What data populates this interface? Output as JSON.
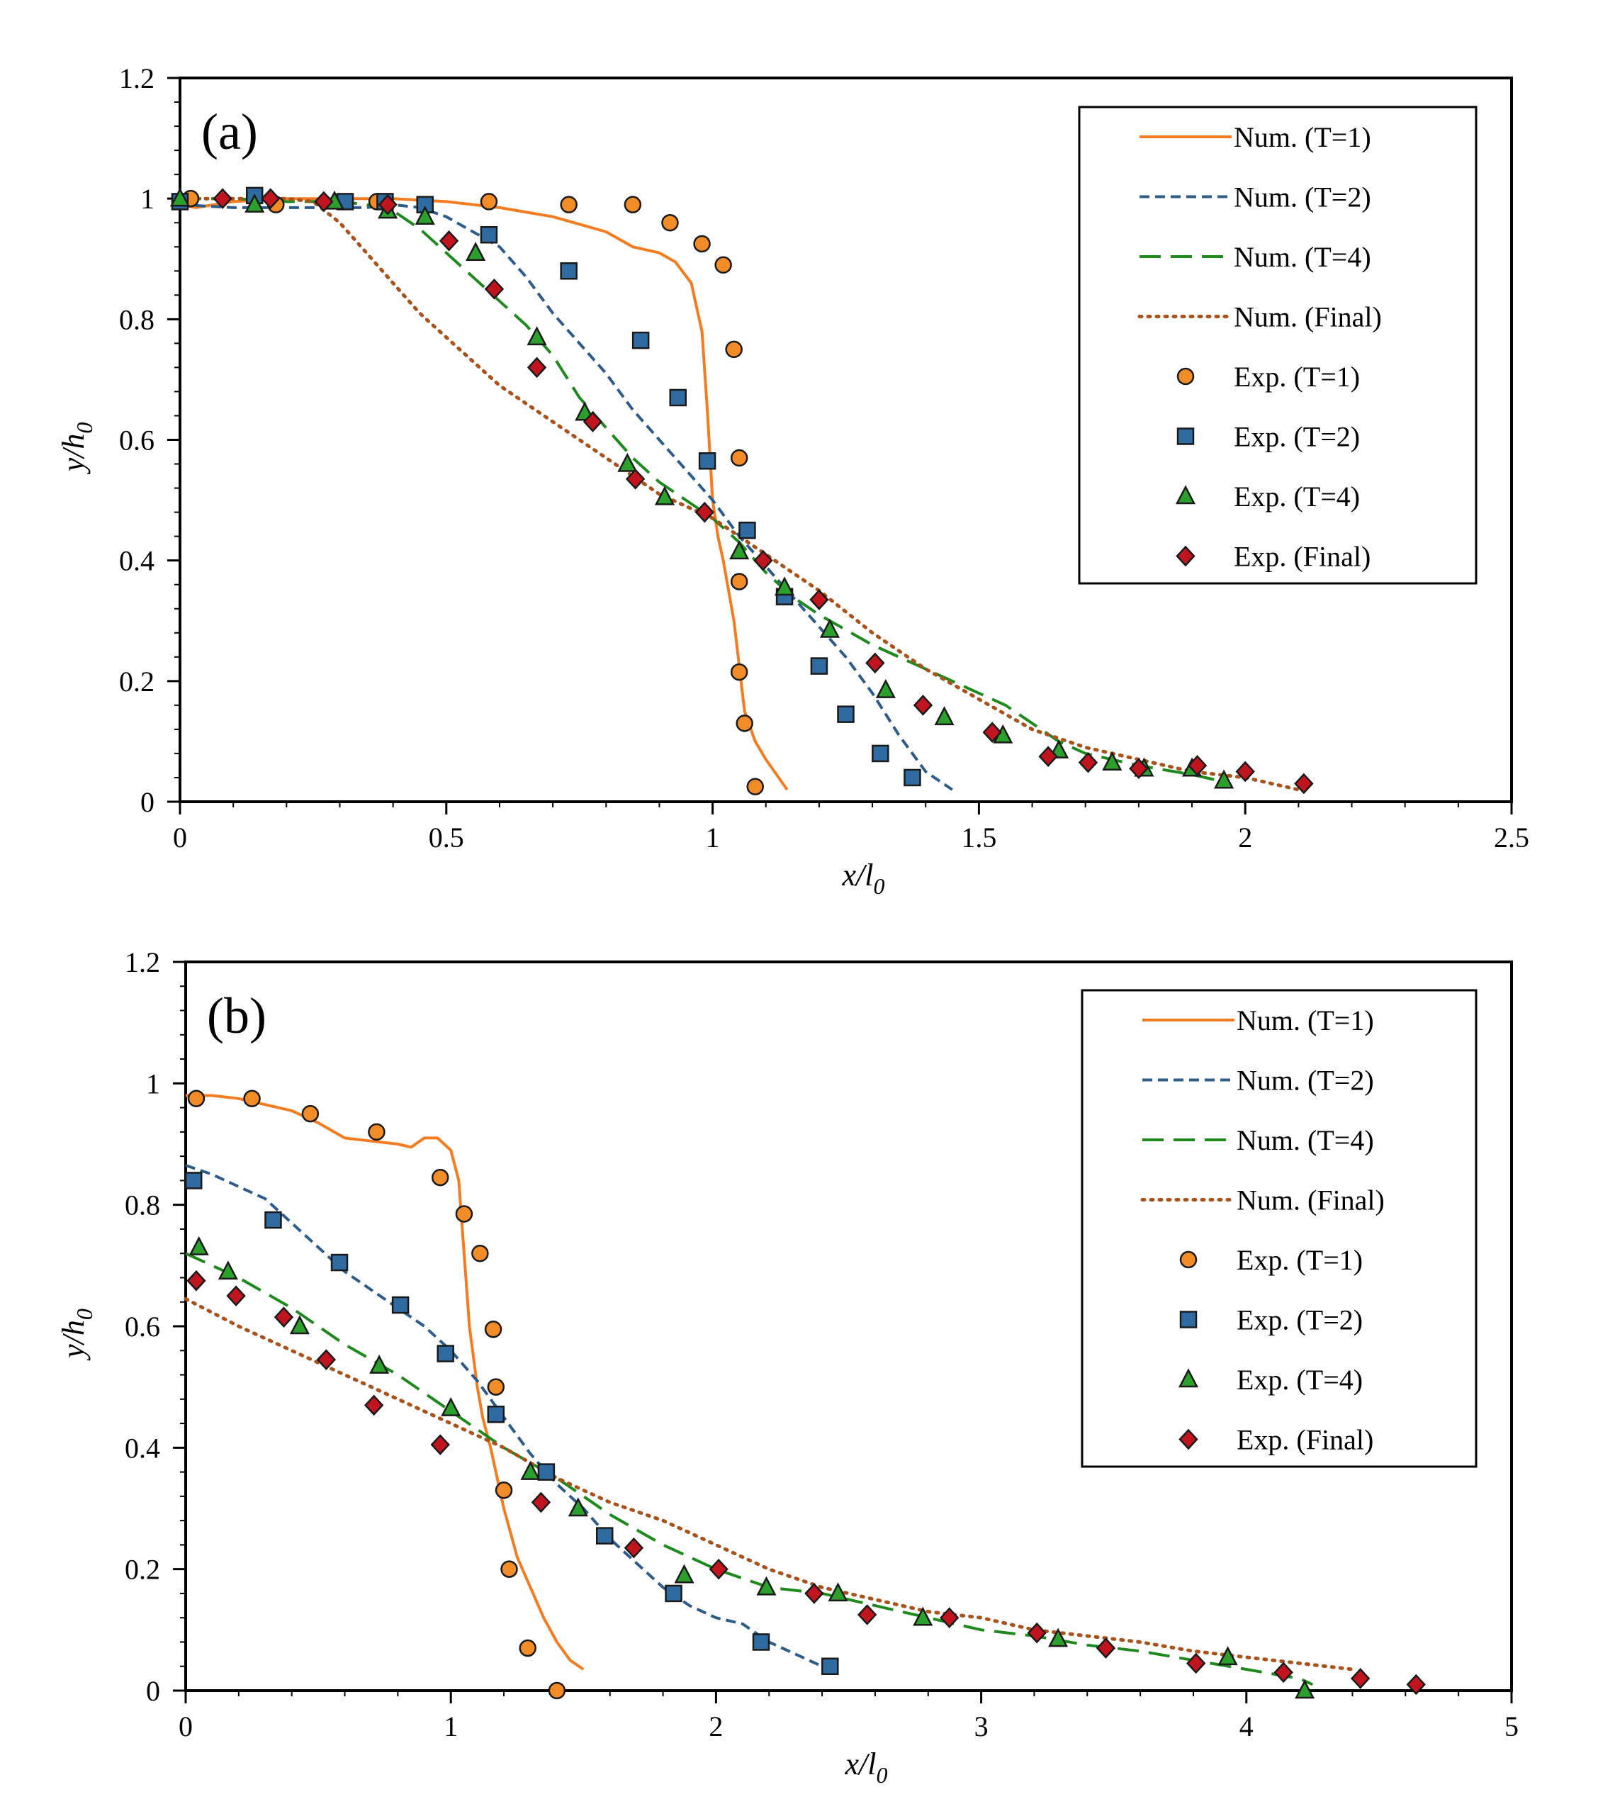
{
  "colors": {
    "t1": "#F47C20",
    "t2": "#2E5C8A",
    "t4": "#1E8A1E",
    "final": "#A8521C",
    "exp_t1": "#F28C28",
    "exp_t2": "#2F6BA0",
    "exp_t4": "#2CA02C",
    "exp_final": "#C0141E"
  },
  "legend": [
    {
      "label": "Num. (T=1)",
      "style": "solid",
      "series": "t1"
    },
    {
      "label": "Num. (T=2)",
      "style": "dash",
      "series": "t2"
    },
    {
      "label": "Num. (T=4)",
      "style": "longdash",
      "series": "t4"
    },
    {
      "label": "Num. (Final)",
      "style": "dot",
      "series": "final"
    },
    {
      "label": "Exp. (T=1)",
      "marker": "circle",
      "series": "exp_t1"
    },
    {
      "label": "Exp. (T=2)",
      "marker": "square",
      "series": "exp_t2"
    },
    {
      "label": "Exp. (T=4)",
      "marker": "triangle",
      "series": "exp_t4"
    },
    {
      "label": "Exp. (Final)",
      "marker": "diamond",
      "series": "exp_final"
    }
  ],
  "chart_data": [
    {
      "type": "scatter",
      "panel_label": "(a)",
      "xlabel_main": "x/l",
      "xlabel_sub": "0",
      "ylabel_main": "y/h",
      "ylabel_sub": "0",
      "xlim": [
        0,
        2.5
      ],
      "ylim": [
        0,
        1.2
      ],
      "xticks": [
        0,
        0.5,
        1,
        1.5,
        2,
        2.5
      ],
      "xtick_labels": [
        "0",
        "0.5",
        "1",
        "1.5",
        "2",
        "2.5"
      ],
      "yticks": [
        0,
        0.2,
        0.4,
        0.6,
        0.8,
        1,
        1.2
      ],
      "ytick_labels": [
        "0",
        "0.2",
        "0.4",
        "0.6",
        "0.8",
        "1",
        "1.2"
      ],
      "legend_position": "top-right",
      "lines": [
        {
          "name": "Num. (T=1)",
          "series": "t1",
          "style": "solid",
          "x": [
            0,
            0.03,
            0.1,
            0.2,
            0.3,
            0.4,
            0.5,
            0.6,
            0.7,
            0.8,
            0.85,
            0.9,
            0.93,
            0.96,
            0.98,
            0.99,
            1.0,
            1.01,
            1.02,
            1.04,
            1.06,
            1.08,
            1.1,
            1.14
          ],
          "y": [
            0.99,
            0.985,
            0.995,
            1.0,
            1.0,
            1.0,
            0.995,
            0.985,
            0.97,
            0.945,
            0.92,
            0.91,
            0.895,
            0.86,
            0.78,
            0.65,
            0.5,
            0.44,
            0.4,
            0.3,
            0.15,
            0.1,
            0.07,
            0.02
          ]
        },
        {
          "name": "Num. (T=2)",
          "series": "t2",
          "style": "dash",
          "x": [
            0,
            0.1,
            0.2,
            0.3,
            0.35,
            0.4,
            0.45,
            0.5,
            0.6,
            0.65,
            0.7,
            0.75,
            0.8,
            0.85,
            0.9,
            0.95,
            1.0,
            1.05,
            1.1,
            1.15,
            1.2,
            1.25,
            1.3,
            1.35,
            1.4,
            1.45
          ],
          "y": [
            0.99,
            0.985,
            0.985,
            0.985,
            0.985,
            0.99,
            0.985,
            0.97,
            0.92,
            0.87,
            0.81,
            0.76,
            0.71,
            0.65,
            0.6,
            0.55,
            0.5,
            0.44,
            0.39,
            0.34,
            0.29,
            0.24,
            0.18,
            0.11,
            0.05,
            0.02
          ]
        },
        {
          "name": "Num. (T=4)",
          "series": "t4",
          "style": "longdash",
          "x": [
            0,
            0.1,
            0.2,
            0.3,
            0.35,
            0.4,
            0.45,
            0.5,
            0.55,
            0.6,
            0.65,
            0.7,
            0.75,
            0.8,
            0.85,
            0.9,
            0.95,
            1.0,
            1.05,
            1.1,
            1.15,
            1.2,
            1.3,
            1.4,
            1.5,
            1.55,
            1.6,
            1.65,
            1.7,
            1.8,
            1.9,
            1.95
          ],
          "y": [
            1.0,
            1.0,
            0.995,
            0.995,
            0.99,
            0.98,
            0.95,
            0.91,
            0.87,
            0.83,
            0.79,
            0.74,
            0.67,
            0.62,
            0.57,
            0.53,
            0.5,
            0.47,
            0.43,
            0.38,
            0.34,
            0.31,
            0.26,
            0.22,
            0.18,
            0.16,
            0.13,
            0.1,
            0.08,
            0.06,
            0.045,
            0.035
          ]
        },
        {
          "name": "Num. (Final)",
          "series": "final",
          "style": "dot",
          "x": [
            0,
            0.1,
            0.2,
            0.25,
            0.3,
            0.35,
            0.4,
            0.45,
            0.5,
            0.55,
            0.6,
            0.65,
            0.7,
            0.75,
            0.8,
            0.85,
            0.9,
            0.95,
            1.0,
            1.05,
            1.1,
            1.15,
            1.2,
            1.3,
            1.4,
            1.5,
            1.6,
            1.7,
            1.8,
            1.9,
            2.0,
            2.05,
            2.1
          ],
          "y": [
            1.0,
            1.0,
            1.0,
            0.995,
            0.96,
            0.91,
            0.86,
            0.81,
            0.77,
            0.73,
            0.69,
            0.66,
            0.63,
            0.6,
            0.57,
            0.54,
            0.51,
            0.49,
            0.47,
            0.44,
            0.41,
            0.38,
            0.35,
            0.28,
            0.22,
            0.17,
            0.12,
            0.09,
            0.07,
            0.05,
            0.04,
            0.03,
            0.02
          ]
        }
      ],
      "points": [
        {
          "name": "Exp. (T=1)",
          "series": "exp_t1",
          "marker": "circle",
          "x": [
            0.02,
            0.18,
            0.37,
            0.58,
            0.73,
            0.85,
            0.92,
            0.98,
            1.02,
            1.04,
            1.05,
            1.05,
            1.05,
            1.06,
            1.08
          ],
          "y": [
            1.0,
            0.99,
            0.995,
            0.995,
            0.99,
            0.99,
            0.96,
            0.925,
            0.89,
            0.75,
            0.57,
            0.365,
            0.215,
            0.13,
            0.025
          ]
        },
        {
          "name": "Exp. (T=2)",
          "series": "exp_t2",
          "marker": "square",
          "x": [
            0,
            0.14,
            0.31,
            0.385,
            0.46,
            0.58,
            0.73,
            0.865,
            0.935,
            0.99,
            1.065,
            1.135,
            1.2,
            1.25,
            1.315,
            1.375
          ],
          "y": [
            0.995,
            1.005,
            0.995,
            0.995,
            0.99,
            0.94,
            0.88,
            0.765,
            0.67,
            0.565,
            0.45,
            0.34,
            0.225,
            0.145,
            0.08,
            0.04
          ]
        },
        {
          "name": "Exp. (T=4)",
          "series": "exp_t4",
          "marker": "triangle",
          "x": [
            0,
            0.14,
            0.29,
            0.39,
            0.46,
            0.555,
            0.67,
            0.76,
            0.84,
            0.91,
            1.05,
            1.135,
            1.22,
            1.325,
            1.435,
            1.545,
            1.65,
            1.75,
            1.81,
            1.9,
            1.96
          ],
          "y": [
            1.0,
            0.99,
            0.995,
            0.98,
            0.97,
            0.91,
            0.77,
            0.645,
            0.56,
            0.505,
            0.415,
            0.355,
            0.285,
            0.185,
            0.14,
            0.11,
            0.085,
            0.065,
            0.055,
            0.055,
            0.035
          ]
        },
        {
          "name": "Exp. (Final)",
          "series": "exp_final",
          "marker": "diamond",
          "x": [
            0.08,
            0.17,
            0.27,
            0.39,
            0.505,
            0.59,
            0.67,
            0.775,
            0.855,
            0.985,
            1.095,
            1.2,
            1.305,
            1.395,
            1.525,
            1.63,
            1.705,
            1.8,
            1.91,
            2.0,
            2.11
          ],
          "y": [
            1.0,
            1.0,
            0.995,
            0.99,
            0.93,
            0.85,
            0.72,
            0.63,
            0.535,
            0.48,
            0.4,
            0.335,
            0.23,
            0.16,
            0.115,
            0.075,
            0.065,
            0.055,
            0.06,
            0.05,
            0.03
          ]
        }
      ]
    },
    {
      "type": "scatter",
      "panel_label": "(b)",
      "xlabel_main": "x/l",
      "xlabel_sub": "0",
      "ylabel_main": "y/h",
      "ylabel_sub": "0",
      "xlim": [
        0,
        5
      ],
      "ylim": [
        0,
        1.2
      ],
      "xticks": [
        0,
        1,
        2,
        3,
        4,
        5
      ],
      "xtick_labels": [
        "0",
        "1",
        "2",
        "3",
        "4",
        "5"
      ],
      "yticks": [
        0,
        0.2,
        0.4,
        0.6,
        0.8,
        1,
        1.2
      ],
      "ytick_labels": [
        "0",
        "0.2",
        "0.4",
        "0.6",
        "0.8",
        "1",
        "1.2"
      ],
      "legend_position": "top-right",
      "lines": [
        {
          "name": "Num. (T=1)",
          "series": "t1",
          "style": "solid",
          "x": [
            0,
            0.1,
            0.2,
            0.3,
            0.4,
            0.5,
            0.6,
            0.7,
            0.8,
            0.85,
            0.9,
            0.95,
            1.0,
            1.03,
            1.05,
            1.07,
            1.1,
            1.12,
            1.15,
            1.2,
            1.25,
            1.3,
            1.35,
            1.4,
            1.45,
            1.5
          ],
          "y": [
            0.98,
            0.98,
            0.975,
            0.965,
            0.955,
            0.935,
            0.91,
            0.905,
            0.9,
            0.895,
            0.91,
            0.91,
            0.89,
            0.84,
            0.72,
            0.6,
            0.5,
            0.45,
            0.4,
            0.3,
            0.22,
            0.17,
            0.12,
            0.08,
            0.05,
            0.035
          ]
        },
        {
          "name": "Num. (T=2)",
          "series": "t2",
          "style": "dash",
          "x": [
            0,
            0.1,
            0.2,
            0.3,
            0.4,
            0.5,
            0.6,
            0.7,
            0.8,
            0.9,
            1.0,
            1.1,
            1.2,
            1.3,
            1.4,
            1.5,
            1.6,
            1.7,
            1.8,
            1.9,
            2.0,
            2.1,
            2.2,
            2.3,
            2.4,
            2.45
          ],
          "y": [
            0.865,
            0.85,
            0.83,
            0.81,
            0.77,
            0.73,
            0.69,
            0.66,
            0.63,
            0.6,
            0.56,
            0.51,
            0.45,
            0.39,
            0.34,
            0.3,
            0.25,
            0.21,
            0.17,
            0.14,
            0.12,
            0.11,
            0.08,
            0.06,
            0.04,
            0.04
          ]
        },
        {
          "name": "Num. (T=4)",
          "series": "t4",
          "style": "longdash",
          "x": [
            0,
            0.2,
            0.4,
            0.6,
            0.8,
            1.0,
            1.2,
            1.4,
            1.6,
            1.8,
            2.0,
            2.2,
            2.4,
            2.6,
            2.8,
            3.0,
            3.2,
            3.4,
            3.6,
            3.8,
            4.0,
            4.2,
            4.25
          ],
          "y": [
            0.72,
            0.68,
            0.63,
            0.57,
            0.52,
            0.46,
            0.4,
            0.35,
            0.29,
            0.24,
            0.2,
            0.17,
            0.16,
            0.14,
            0.12,
            0.1,
            0.09,
            0.075,
            0.065,
            0.05,
            0.035,
            0.02,
            0.01
          ]
        },
        {
          "name": "Num. (Final)",
          "series": "final",
          "style": "dot",
          "x": [
            0,
            0.2,
            0.4,
            0.6,
            0.8,
            1.0,
            1.2,
            1.4,
            1.6,
            1.8,
            2.0,
            2.2,
            2.4,
            2.6,
            2.8,
            3.0,
            3.2,
            3.4,
            3.6,
            3.8,
            4.0,
            4.2,
            4.4
          ],
          "y": [
            0.645,
            0.6,
            0.56,
            0.52,
            0.48,
            0.44,
            0.4,
            0.35,
            0.31,
            0.28,
            0.24,
            0.2,
            0.17,
            0.15,
            0.13,
            0.12,
            0.1,
            0.09,
            0.08,
            0.065,
            0.055,
            0.045,
            0.035
          ]
        }
      ],
      "points": [
        {
          "name": "Exp. (T=1)",
          "series": "exp_t1",
          "marker": "circle",
          "x": [
            0.04,
            0.25,
            0.47,
            0.72,
            0.96,
            1.05,
            1.11,
            1.16,
            1.17,
            1.2,
            1.22,
            1.29,
            1.4
          ],
          "y": [
            0.975,
            0.975,
            0.95,
            0.92,
            0.845,
            0.785,
            0.72,
            0.595,
            0.5,
            0.33,
            0.2,
            0.07,
            0.0
          ]
        },
        {
          "name": "Exp. (T=2)",
          "series": "exp_t2",
          "marker": "square",
          "x": [
            0.03,
            0.33,
            0.58,
            0.81,
            0.98,
            1.17,
            1.36,
            1.58,
            1.84,
            2.17,
            2.43
          ],
          "y": [
            0.84,
            0.775,
            0.705,
            0.635,
            0.555,
            0.455,
            0.36,
            0.255,
            0.16,
            0.08,
            0.04
          ]
        },
        {
          "name": "Exp. (T=4)",
          "series": "exp_t4",
          "marker": "triangle",
          "x": [
            0.05,
            0.16,
            0.43,
            0.73,
            1.0,
            1.3,
            1.48,
            1.88,
            2.19,
            2.46,
            2.78,
            3.29,
            3.93,
            4.22
          ],
          "y": [
            0.73,
            0.69,
            0.6,
            0.535,
            0.465,
            0.36,
            0.3,
            0.19,
            0.17,
            0.16,
            0.12,
            0.085,
            0.055,
            0.0
          ]
        },
        {
          "name": "Exp. (Final)",
          "series": "exp_final",
          "marker": "diamond",
          "x": [
            0.04,
            0.19,
            0.37,
            0.53,
            0.71,
            0.96,
            1.34,
            1.69,
            2.01,
            2.37,
            2.57,
            2.88,
            3.21,
            3.47,
            3.81,
            4.14,
            4.43,
            4.64
          ],
          "y": [
            0.675,
            0.65,
            0.615,
            0.545,
            0.47,
            0.405,
            0.31,
            0.235,
            0.2,
            0.16,
            0.125,
            0.12,
            0.095,
            0.07,
            0.045,
            0.03,
            0.02,
            0.01
          ]
        }
      ]
    }
  ]
}
